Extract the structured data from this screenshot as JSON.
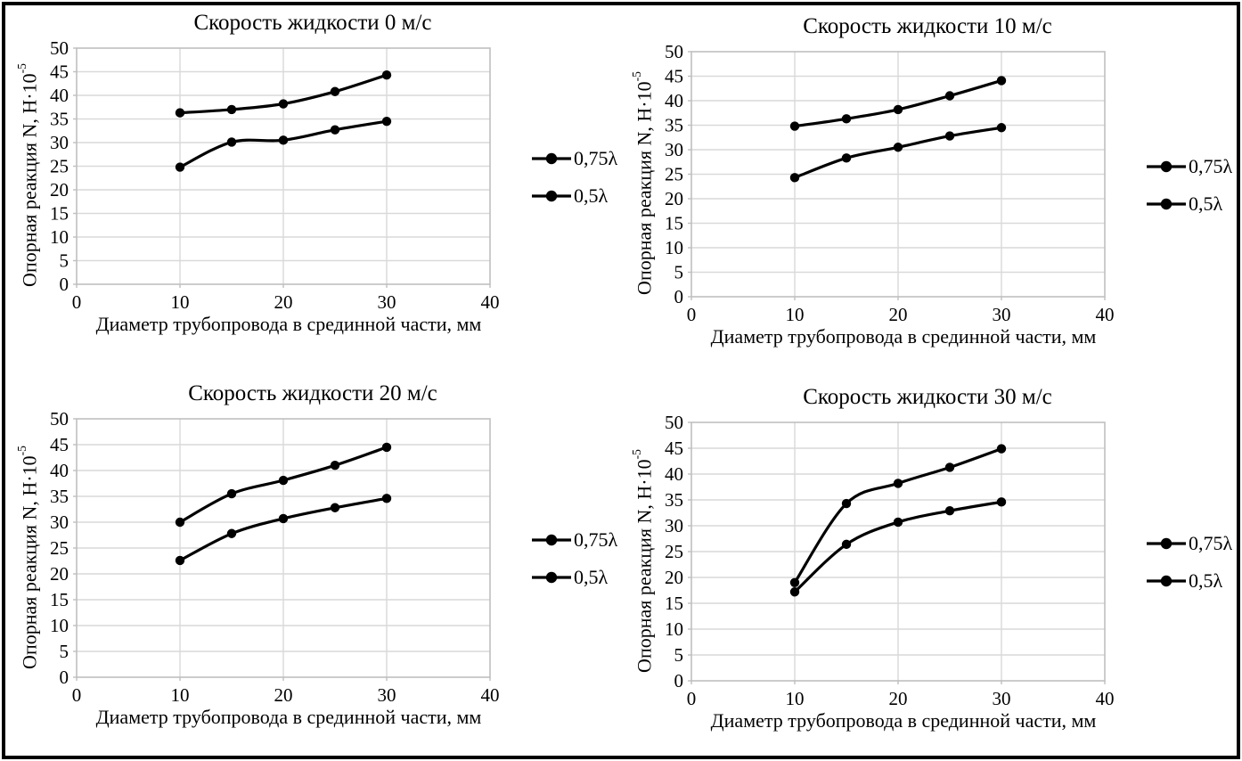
{
  "page": {
    "background": "#ffffff",
    "frame_color": "#000000"
  },
  "styles": {
    "series_color": "#000000",
    "grid_color": "#d9d9d9",
    "axis_color": "#bfbfbf",
    "text_color": "#000000"
  },
  "chart_data": [
    {
      "type": "line",
      "title": "Скорость жидкости 0 м/с",
      "xlabel": "Диаметр трубопровода в срединной части, мм",
      "ylabel_base": "Опорная реакция N, Н·10",
      "ylabel_exp": "-5",
      "x": [
        10,
        15,
        20,
        25,
        30
      ],
      "series": [
        {
          "name": "0,75λ",
          "values": [
            36.3,
            37.0,
            38.2,
            40.8,
            44.3
          ]
        },
        {
          "name": "0,5λ",
          "values": [
            24.8,
            30.1,
            30.5,
            32.7,
            34.5
          ]
        }
      ],
      "xlim": [
        0,
        40
      ],
      "ylim": [
        0,
        50
      ],
      "xticks": [
        0,
        10,
        20,
        30,
        40
      ],
      "yticks": [
        0,
        5,
        10,
        15,
        20,
        25,
        30,
        35,
        40,
        45,
        50
      ],
      "grid": true,
      "legend_position": "right",
      "marker": "circle"
    },
    {
      "type": "line",
      "title": "Скорость жидкости 10 м/с",
      "xlabel": "Диаметр трубопровода в срединной части, мм",
      "ylabel_base": "Опорная реакция N, Н·10",
      "ylabel_exp": "-5",
      "x": [
        10,
        15,
        20,
        25,
        30
      ],
      "series": [
        {
          "name": "0,75λ",
          "values": [
            34.8,
            36.3,
            38.2,
            41.0,
            44.1
          ]
        },
        {
          "name": "0,5λ",
          "values": [
            24.3,
            28.3,
            30.5,
            32.8,
            34.5
          ]
        }
      ],
      "xlim": [
        0,
        40
      ],
      "ylim": [
        0,
        50
      ],
      "xticks": [
        0,
        10,
        20,
        30,
        40
      ],
      "yticks": [
        0,
        5,
        10,
        15,
        20,
        25,
        30,
        35,
        40,
        45,
        50
      ],
      "grid": true,
      "legend_position": "right",
      "marker": "circle"
    },
    {
      "type": "line",
      "title": "Скорость жидкости 20 м/с",
      "xlabel": "Диаметр трубопровода в срединной части, мм",
      "ylabel_base": "Опорная реакция N, Н·10",
      "ylabel_exp": "-5",
      "x": [
        10,
        15,
        20,
        25,
        30
      ],
      "series": [
        {
          "name": "0,75λ",
          "values": [
            30.0,
            35.5,
            38.1,
            41.0,
            44.5
          ]
        },
        {
          "name": "0,5λ",
          "values": [
            22.6,
            27.8,
            30.7,
            32.8,
            34.6
          ]
        }
      ],
      "xlim": [
        0,
        40
      ],
      "ylim": [
        0,
        50
      ],
      "xticks": [
        0,
        10,
        20,
        30,
        40
      ],
      "yticks": [
        0,
        5,
        10,
        15,
        20,
        25,
        30,
        35,
        40,
        45,
        50
      ],
      "grid": true,
      "legend_position": "right",
      "marker": "circle"
    },
    {
      "type": "line",
      "title": "Скорость жидкости 30 м/с",
      "xlabel": "Диаметр трубопровода в срединной части, мм",
      "ylabel_base": "Опорная реакция N, Н·10",
      "ylabel_exp": "-5",
      "x": [
        10,
        15,
        20,
        25,
        30
      ],
      "series": [
        {
          "name": "0,75λ",
          "values": [
            19.0,
            34.3,
            38.2,
            41.3,
            44.9
          ]
        },
        {
          "name": "0,5λ",
          "values": [
            17.2,
            26.4,
            30.7,
            32.9,
            34.6
          ]
        }
      ],
      "xlim": [
        0,
        40
      ],
      "ylim": [
        0,
        50
      ],
      "xticks": [
        0,
        10,
        20,
        30,
        40
      ],
      "yticks": [
        0,
        5,
        10,
        15,
        20,
        25,
        30,
        35,
        40,
        45,
        50
      ],
      "grid": true,
      "legend_position": "right",
      "marker": "circle"
    }
  ]
}
